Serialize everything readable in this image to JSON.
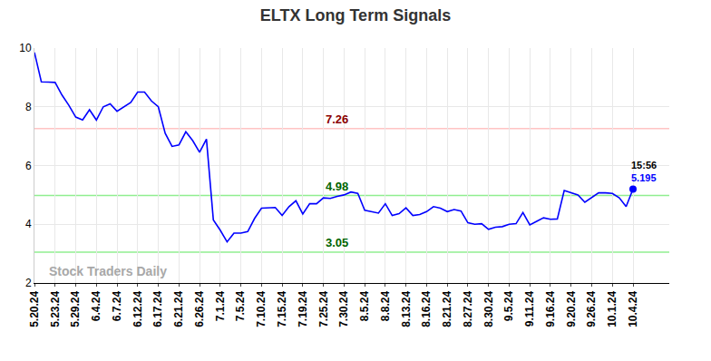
{
  "chart_data": {
    "type": "line",
    "title": "ELTX Long Term Signals",
    "color": "#0000ff",
    "marker": "circle",
    "grid": true,
    "ylim": [
      2,
      10
    ],
    "yticks": [
      2,
      4,
      6,
      8,
      10
    ],
    "categories": [
      "5.20.24",
      null,
      null,
      "5.23.24",
      null,
      null,
      "5.29.24",
      null,
      null,
      "6.4.24",
      null,
      null,
      "6.7.24",
      null,
      null,
      "6.12.24",
      null,
      null,
      "6.17.24",
      null,
      null,
      "6.21.24",
      null,
      null,
      "6.26.24",
      null,
      null,
      "7.1.24",
      null,
      null,
      "7.5.24",
      null,
      null,
      "7.10.24",
      null,
      null,
      "7.15.24",
      null,
      null,
      "7.19.24",
      null,
      null,
      "7.25.24",
      null,
      null,
      "7.30.24",
      null,
      null,
      "8.5.24",
      null,
      null,
      "8.8.24",
      null,
      null,
      "8.13.24",
      null,
      null,
      "8.16.24",
      null,
      null,
      "8.21.24",
      null,
      null,
      "8.27.24",
      null,
      null,
      "8.30.24",
      null,
      null,
      "9.5.24",
      null,
      null,
      "9.11.24",
      null,
      null,
      "9.16.24",
      null,
      null,
      "9.20.24",
      null,
      null,
      "9.26.24",
      null,
      null,
      "10.1.24",
      null,
      null,
      "10.4.24"
    ],
    "values": [
      9.85,
      8.85,
      8.84,
      8.83,
      8.4,
      8.05,
      7.65,
      7.55,
      7.9,
      7.55,
      8.0,
      8.1,
      7.85,
      8.0,
      8.15,
      8.5,
      8.5,
      8.2,
      8.0,
      7.1,
      6.65,
      6.7,
      7.15,
      6.85,
      6.45,
      6.9,
      4.15,
      3.8,
      3.4,
      3.7,
      3.7,
      3.75,
      4.2,
      4.55,
      4.55,
      4.57,
      4.3,
      4.6,
      4.8,
      4.35,
      4.7,
      4.7,
      4.9,
      4.88,
      4.95,
      5.0,
      5.1,
      5.05,
      4.48,
      4.44,
      4.38,
      4.7,
      4.3,
      4.36,
      4.56,
      4.3,
      4.33,
      4.43,
      4.6,
      4.55,
      4.43,
      4.5,
      4.45,
      4.05,
      4.0,
      4.02,
      3.83,
      3.9,
      3.92,
      4.0,
      4.02,
      4.4,
      3.98,
      4.1,
      4.22,
      4.17,
      4.18,
      5.15,
      5.08,
      5.0,
      4.75,
      4.9,
      5.07,
      5.07,
      5.05,
      4.9,
      4.6,
      5.195
    ],
    "levels": [
      {
        "value": 7.26,
        "color": "#ffc4c4"
      },
      {
        "value": 4.98,
        "color": "#90ee90"
      },
      {
        "value": 3.05,
        "color": "#90ee90"
      }
    ],
    "time_label": "15:56",
    "watermark": "Stock Traders Daily"
  }
}
